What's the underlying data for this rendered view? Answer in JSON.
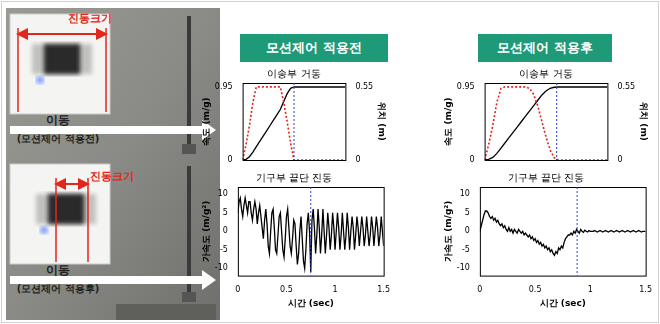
{
  "photo": {
    "before": {
      "vibration_label": "진동크기",
      "move_label": "이동",
      "caption": "(모션제어 적용전)"
    },
    "after": {
      "vibration_label": "진동크기",
      "move_label": "이동",
      "caption": "(모션제어 적용후)"
    }
  },
  "headers": [
    "모션제어 적용전",
    "모션제어 적용후"
  ],
  "chart_data": [
    {
      "type": "line",
      "title": "이송부 거동",
      "x": [
        0,
        0.05,
        0.1,
        0.15,
        0.2,
        0.25,
        0.3,
        0.35,
        0.4,
        0.45,
        0.5,
        0.55,
        0.6,
        0.65,
        0.7,
        0.75,
        0.8,
        0.85,
        0.9,
        0.95,
        1,
        1.05,
        1.1,
        1.15,
        1.2,
        1.25,
        1.3,
        1.35,
        1.4,
        1.45,
        1.5
      ],
      "xlim": [
        0,
        1.5
      ],
      "tick_labels": "y",
      "ylim": [
        0,
        1
      ],
      "yticks": [
        0,
        0.95
      ],
      "ylabel": "속도 (m/g)",
      "y2lim": [
        0,
        0.58
      ],
      "y2ticks": [
        0,
        0.55
      ],
      "y2label": "위치 (m)",
      "vline": 0.75,
      "series": [
        {
          "color": "#e3261c",
          "line_style": "dotted",
          "values": [
            0,
            0.2,
            0.45,
            0.75,
            0.95,
            0.95,
            0.95,
            0.95,
            0.95,
            0.95,
            0.95,
            0.95,
            0.75,
            0.5,
            0.22,
            0,
            0,
            0,
            0,
            0,
            0,
            0,
            0,
            0,
            0,
            0,
            0,
            0,
            0,
            0,
            0
          ]
        },
        {
          "color": "#000000",
          "line_style": "solid",
          "axis": "y2",
          "values": [
            0,
            0.005,
            0.025,
            0.06,
            0.1,
            0.14,
            0.18,
            0.22,
            0.26,
            0.3,
            0.34,
            0.38,
            0.44,
            0.5,
            0.54,
            0.55,
            0.55,
            0.55,
            0.55,
            0.55,
            0.55,
            0.55,
            0.55,
            0.55,
            0.55,
            0.55,
            0.55,
            0.55,
            0.55,
            0.55,
            0.55
          ]
        }
      ]
    },
    {
      "type": "line",
      "title": "기구부 끝단 진동",
      "xlabel": "시간 (sec)",
      "ylabel": "가속도 (m/g²)",
      "x": [
        0,
        0.0125,
        0.025,
        0.0375,
        0.05,
        0.0625,
        0.075,
        0.0875,
        0.1,
        0.1125,
        0.125,
        0.1375,
        0.15,
        0.1625,
        0.175,
        0.1875,
        0.2,
        0.2125,
        0.225,
        0.2375,
        0.25,
        0.2625,
        0.275,
        0.2875,
        0.3,
        0.3125,
        0.325,
        0.3375,
        0.35,
        0.3625,
        0.375,
        0.3875,
        0.4,
        0.4125,
        0.425,
        0.4375,
        0.45,
        0.4625,
        0.475,
        0.4875,
        0.5,
        0.5125,
        0.525,
        0.5375,
        0.55,
        0.5625,
        0.575,
        0.5875,
        0.6,
        0.6125,
        0.625,
        0.6375,
        0.65,
        0.6625,
        0.675,
        0.6875,
        0.7,
        0.7125,
        0.725,
        0.7375,
        0.75,
        0.7625,
        0.775,
        0.7875,
        0.8,
        0.8125,
        0.825,
        0.8375,
        0.85,
        0.8625,
        0.875,
        0.8875,
        0.9,
        0.9125,
        0.925,
        0.9375,
        0.95,
        0.9625,
        0.975,
        0.9875,
        1,
        1.0125,
        1.025,
        1.0375,
        1.05,
        1.0625,
        1.075,
        1.0875,
        1.1,
        1.1125,
        1.125,
        1.1375,
        1.15,
        1.1625,
        1.175,
        1.1875,
        1.2,
        1.2125,
        1.225,
        1.2375,
        1.25,
        1.2625,
        1.275,
        1.2875,
        1.3,
        1.3125,
        1.325,
        1.3375,
        1.35,
        1.3625,
        1.375,
        1.3875,
        1.4,
        1.4125,
        1.425,
        1.4375,
        1.45,
        1.4625,
        1.475,
        1.4875,
        1.5
      ],
      "xlim": [
        0,
        1.5
      ],
      "xticks": [
        0,
        0.5,
        1,
        1.5
      ],
      "ylim": [
        -12,
        12
      ],
      "yticks": [
        -10,
        -5,
        0,
        5,
        10
      ],
      "vline": 0.75,
      "series": [
        {
          "color": "#000000",
          "line_style": "solid",
          "values": [
            5,
            8,
            9,
            6,
            4,
            7,
            9,
            7,
            5,
            8,
            8,
            5,
            3,
            6,
            8,
            6,
            2,
            5,
            7,
            4,
            1,
            -2,
            3,
            6,
            2,
            -4,
            -6,
            0,
            5,
            6,
            1,
            -5,
            -6,
            -1,
            4,
            5,
            0,
            -5,
            -7,
            -2,
            4,
            6,
            1,
            -4,
            -6,
            -2,
            3,
            2,
            -4,
            -9,
            -6,
            0,
            4,
            -2,
            -8,
            -10,
            -5,
            2,
            5,
            0,
            -11,
            3,
            6,
            1,
            -6,
            -1,
            6,
            1,
            -6,
            -1,
            6,
            0,
            -6,
            -1,
            5,
            1,
            -5,
            -1,
            5,
            1,
            -5,
            0,
            5,
            1,
            -5,
            -1,
            5,
            0,
            -5,
            -1,
            5,
            1,
            -5,
            0,
            4,
            1,
            -5,
            -1,
            4,
            1,
            -4,
            0,
            4,
            1,
            -4,
            -1,
            4,
            0,
            -4,
            -1,
            4,
            1,
            -4,
            0,
            4,
            1,
            -4,
            -1,
            4,
            0,
            -4
          ]
        }
      ]
    },
    {
      "type": "line",
      "title": "이송부 거동",
      "x": [
        0,
        0.05,
        0.1,
        0.15,
        0.2,
        0.25,
        0.3,
        0.35,
        0.4,
        0.45,
        0.5,
        0.55,
        0.6,
        0.65,
        0.7,
        0.75,
        0.8,
        0.85,
        0.9,
        0.95,
        1,
        1.05,
        1.1,
        1.15,
        1.2,
        1.25,
        1.3,
        1.35,
        1.4,
        1.45,
        1.5
      ],
      "xlim": [
        0,
        1.5
      ],
      "tick_labels": "y",
      "ylim": [
        0,
        1
      ],
      "yticks": [
        0,
        0.95
      ],
      "ylabel": "속도 (m/g)",
      "y2lim": [
        0,
        0.58
      ],
      "y2ticks": [
        0,
        0.55
      ],
      "y2label": "위치 (m)",
      "vline": 0.88,
      "series": [
        {
          "color": "#e3261c",
          "line_style": "dotted",
          "values": [
            0,
            0.2,
            0.45,
            0.75,
            0.93,
            0.95,
            0.95,
            0.95,
            0.95,
            0.95,
            0.95,
            0.93,
            0.85,
            0.7,
            0.5,
            0.3,
            0.13,
            0.03,
            0,
            0,
            0,
            0,
            0,
            0,
            0,
            0,
            0,
            0,
            0,
            0,
            0
          ]
        },
        {
          "color": "#000000",
          "line_style": "solid",
          "axis": "y2",
          "values": [
            0,
            0.005,
            0.02,
            0.05,
            0.09,
            0.13,
            0.17,
            0.21,
            0.25,
            0.29,
            0.33,
            0.37,
            0.41,
            0.45,
            0.49,
            0.52,
            0.54,
            0.548,
            0.55,
            0.55,
            0.55,
            0.55,
            0.55,
            0.55,
            0.55,
            0.55,
            0.55,
            0.55,
            0.55,
            0.55,
            0.55
          ]
        }
      ]
    },
    {
      "type": "line",
      "title": "기구부 끝단 진동",
      "xlabel": "시간 (sec)",
      "ylabel": "가속도 (m/g²)",
      "x": [
        0,
        0.0125,
        0.025,
        0.0375,
        0.05,
        0.0625,
        0.075,
        0.0875,
        0.1,
        0.1125,
        0.125,
        0.1375,
        0.15,
        0.1625,
        0.175,
        0.1875,
        0.2,
        0.2125,
        0.225,
        0.2375,
        0.25,
        0.2625,
        0.275,
        0.2875,
        0.3,
        0.3125,
        0.325,
        0.3375,
        0.35,
        0.3625,
        0.375,
        0.3875,
        0.4,
        0.4125,
        0.425,
        0.4375,
        0.45,
        0.4625,
        0.475,
        0.4875,
        0.5,
        0.5125,
        0.525,
        0.5375,
        0.55,
        0.5625,
        0.575,
        0.5875,
        0.6,
        0.6125,
        0.625,
        0.6375,
        0.65,
        0.6625,
        0.675,
        0.6875,
        0.7,
        0.7125,
        0.725,
        0.7375,
        0.75,
        0.7625,
        0.775,
        0.7875,
        0.8,
        0.8125,
        0.825,
        0.8375,
        0.85,
        0.8625,
        0.875,
        0.8875,
        0.9,
        0.9125,
        0.925,
        0.9375,
        0.95,
        0.9625,
        0.975,
        0.9875,
        1,
        1.0125,
        1.025,
        1.0375,
        1.05,
        1.0625,
        1.075,
        1.0875,
        1.1,
        1.1125,
        1.125,
        1.1375,
        1.15,
        1.1625,
        1.175,
        1.1875,
        1.2,
        1.2125,
        1.225,
        1.2375,
        1.25,
        1.2625,
        1.275,
        1.2875,
        1.3,
        1.3125,
        1.325,
        1.3375,
        1.35,
        1.3625,
        1.375,
        1.3875,
        1.4,
        1.4125,
        1.425,
        1.4375,
        1.45,
        1.4625,
        1.475,
        1.4875,
        1.5
      ],
      "xlim": [
        0,
        1.5
      ],
      "xticks": [
        0,
        0.5,
        1,
        1.5
      ],
      "ylim": [
        -12,
        12
      ],
      "yticks": [
        -10,
        -5,
        0,
        5,
        10
      ],
      "vline": 0.88,
      "series": [
        {
          "color": "#000000",
          "line_style": "solid",
          "values": [
            0,
            1.5,
            3,
            4.5,
            5.5,
            5.5,
            5,
            4,
            3.5,
            4,
            3,
            3.5,
            2.5,
            3,
            2,
            1.5,
            2,
            1,
            1.5,
            0.5,
            0,
            1,
            0,
            0.5,
            -0.5,
            0.5,
            0,
            -0.5,
            0.5,
            0,
            -0.5,
            0,
            -1,
            -0.5,
            -1,
            -1.5,
            -1,
            -2,
            -1.5,
            -2.5,
            -2,
            -3,
            -2.5,
            -3.5,
            -3,
            -4,
            -3.5,
            -4.5,
            -4,
            -5,
            -4.5,
            -5.5,
            -5,
            -6,
            -6.5,
            -5.5,
            -6,
            -4.5,
            -5,
            -4,
            -4.5,
            -3,
            -2,
            -1.5,
            -1,
            -1,
            -0.5,
            -1,
            0,
            -0.5,
            0.5,
            0,
            -0.5,
            0.5,
            0,
            -0.3,
            0.3,
            0,
            -0.2,
            0.2,
            0,
            0,
            0,
            0.2,
            0,
            -0.2,
            0,
            0.2,
            0,
            -0.2,
            0,
            0.2,
            0,
            -0.2,
            0,
            0.2,
            0,
            -0.2,
            0,
            0.2,
            0,
            -0.2,
            0,
            0.2,
            0,
            -0.2,
            0,
            0.2,
            0,
            -0.2,
            0,
            0.2,
            0,
            -0.2,
            0,
            0.2,
            0,
            -0.2,
            0,
            0,
            0
          ]
        }
      ]
    }
  ]
}
